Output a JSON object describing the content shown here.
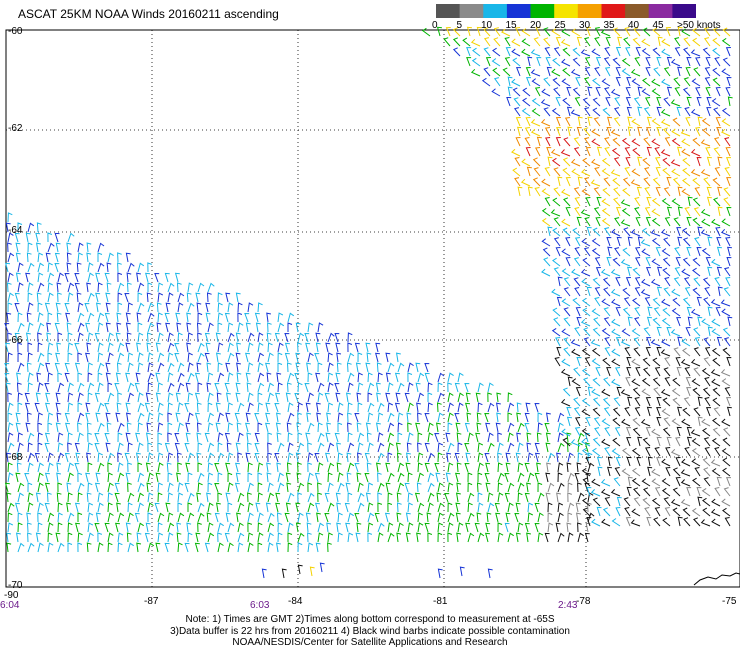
{
  "title": "ASCAT 25KM NOAA Winds 20160211 ascending",
  "legend": {
    "labels": [
      "0",
      "5",
      "10",
      "15",
      "20",
      "25",
      "30",
      "35",
      "40",
      "45",
      ">50 knots"
    ],
    "colors": [
      "#555555",
      "#8a8a8a",
      "#19b6e8",
      "#1634d6",
      "#00b400",
      "#f5e400",
      "#f5a000",
      "#e01818",
      "#8a5a2a",
      "#8a2aa0",
      "#3a0a8a"
    ]
  },
  "axes": {
    "latitude_labels": [
      "-60",
      "-62",
      "-64",
      "-66",
      "-68",
      "-70"
    ],
    "longitude_labels": [
      "-87",
      "-84",
      "-81",
      "-78",
      "-75"
    ],
    "corner_label": "-90"
  },
  "times": [
    {
      "label": "6:04"
    },
    {
      "label": "6:03"
    },
    {
      "label": "2:43"
    }
  ],
  "notes": [
    "Note: 1) Times are GMT 2)Times along bottom correspond to measurement at -65S",
    "3)Data buffer is 22 hrs from 20160211 4) Black wind barbs indicate possible contamination",
    "NOAA/NESDIS/Center for Satellite Applications and Research"
  ]
}
